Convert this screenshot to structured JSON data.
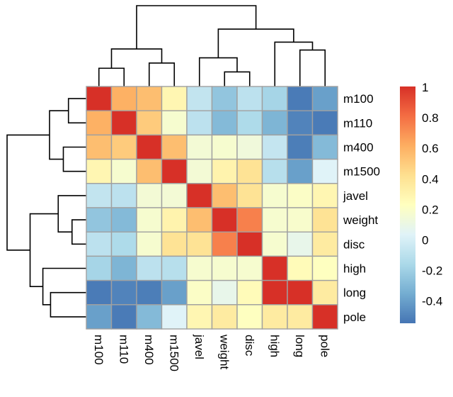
{
  "chart_data": {
    "type": "heatmap",
    "title": "",
    "xlabel": "",
    "ylabel": "",
    "row_labels": [
      "m100",
      "m110",
      "m400",
      "m1500",
      "javel",
      "weight",
      "disc",
      "high",
      "long",
      "pole"
    ],
    "col_labels": [
      "m100",
      "m110",
      "m400",
      "m1500",
      "javel",
      "weight",
      "disc",
      "high",
      "long",
      "pole"
    ],
    "values": [
      [
        1.0,
        0.6,
        0.55,
        0.28,
        -0.08,
        -0.25,
        -0.1,
        -0.18,
        -0.53,
        -0.4
      ],
      [
        0.6,
        1.0,
        0.5,
        0.17,
        -0.1,
        -0.3,
        -0.15,
        -0.32,
        -0.5,
        -0.53
      ],
      [
        0.55,
        0.5,
        1.0,
        0.55,
        0.15,
        0.17,
        0.13,
        -0.07,
        -0.52,
        -0.3
      ],
      [
        0.28,
        0.17,
        0.55,
        1.0,
        0.15,
        0.3,
        0.4,
        -0.12,
        -0.4,
        0.03
      ],
      [
        -0.08,
        -0.1,
        0.15,
        0.15,
        1.0,
        0.55,
        0.4,
        0.17,
        0.2,
        0.28
      ],
      [
        -0.25,
        -0.3,
        0.17,
        0.3,
        0.55,
        1.0,
        0.75,
        0.17,
        0.18,
        0.4
      ],
      [
        -0.1,
        -0.15,
        0.17,
        0.4,
        0.4,
        0.75,
        1.0,
        0.17,
        0.08,
        0.35
      ],
      [
        -0.18,
        -0.32,
        -0.1,
        -0.12,
        0.17,
        0.17,
        0.17,
        1.0,
        0.25,
        0.22
      ],
      [
        -0.53,
        -0.5,
        -0.52,
        -0.4,
        0.2,
        0.08,
        0.25,
        1.0,
        1.0,
        0.35
      ],
      [
        -0.4,
        -0.53,
        -0.3,
        0.03,
        0.28,
        0.35,
        0.22,
        0.35,
        0.35,
        1.0
      ]
    ],
    "color_scale": {
      "range": [
        -0.55,
        1.0
      ],
      "colors": [
        "#4575b4",
        "#74add1",
        "#abd9e9",
        "#e0f3f8",
        "#ffffbf",
        "#fee090",
        "#fdae61",
        "#f46d43",
        "#d73027"
      ]
    },
    "legend": {
      "position": "right",
      "ticks": [
        1,
        0.8,
        0.6,
        0.4,
        0.2,
        0,
        -0.2,
        -0.4
      ],
      "tick_labels": [
        "1",
        "0.8",
        "0.6",
        "0.4",
        "0.2",
        "0",
        "-0.2",
        "-0.4"
      ]
    },
    "dendrogram_rows": {
      "position": "left",
      "merges": [
        [
          0,
          1,
          0.35
        ],
        [
          2,
          3,
          0.45
        ],
        [
          "0-1",
          "2-3",
          0.72
        ],
        [
          5,
          6,
          0.28
        ],
        [
          4,
          "5-6",
          0.55
        ],
        [
          8,
          9,
          0.7
        ],
        [
          7,
          "8-9",
          0.85
        ],
        [
          "4-5-6",
          "7-8-9",
          1.1
        ],
        [
          "0-3",
          "4-9",
          1.55
        ]
      ]
    },
    "dendrogram_cols": {
      "position": "top",
      "merges": [
        [
          0,
          1,
          0.35
        ],
        [
          2,
          3,
          0.45
        ],
        [
          "0-1",
          "2-3",
          0.72
        ],
        [
          5,
          6,
          0.28
        ],
        [
          4,
          "5-6",
          0.55
        ],
        [
          8,
          9,
          0.7
        ],
        [
          7,
          "8-9",
          0.85
        ],
        [
          "4-5-6",
          "7-8-9",
          1.1
        ],
        [
          "0-3",
          "4-9",
          1.55
        ]
      ]
    },
    "grid": true
  }
}
